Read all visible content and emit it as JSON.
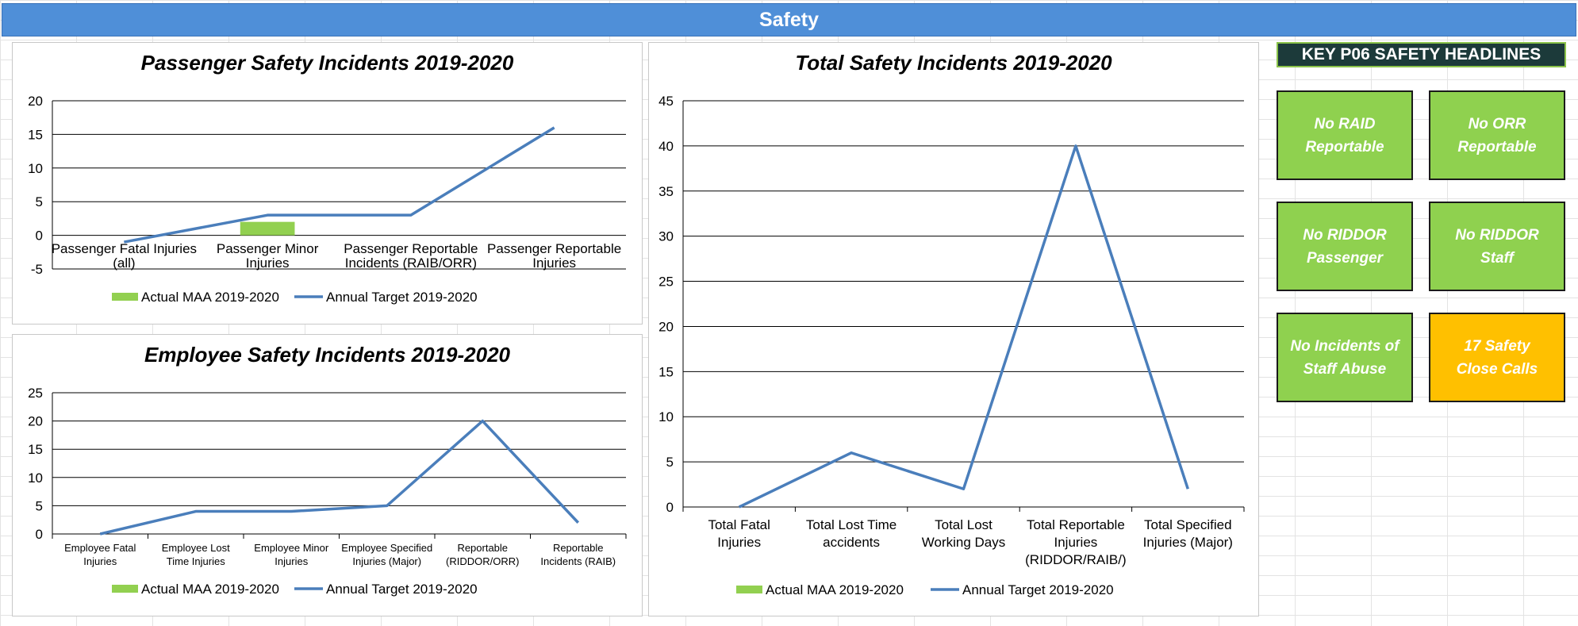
{
  "page_title": "Safety",
  "colors": {
    "title_bar": "#4f8fd8",
    "line": "#4a7ebb",
    "bar": "#92d050",
    "tile_green": "#8fd14f",
    "tile_amber": "#ffc000",
    "headline_bg": "#1c3a3a"
  },
  "chart_data": [
    {
      "type": "bar",
      "title": "Passenger Safety Incidents 2019-2020",
      "categories": [
        [
          "Passenger Fatal Injuries",
          "(all)"
        ],
        [
          "Passenger Minor",
          "Injuries"
        ],
        [
          "Passenger Reportable",
          "Incidents (RAIB/ORR)"
        ],
        [
          "Passenger Reportable",
          "Injuries"
        ]
      ],
      "series": [
        {
          "name": "Actual MAA 2019-2020",
          "type": "bar",
          "values": [
            0,
            2,
            0,
            0
          ]
        },
        {
          "name": "Annual Target 2019-2020",
          "type": "line",
          "values": [
            -1,
            3,
            3,
            16
          ]
        }
      ],
      "ylim": [
        -5,
        20
      ],
      "yticks": [
        -5,
        0,
        5,
        10,
        15,
        20
      ],
      "grid": true,
      "legend": "bottom"
    },
    {
      "type": "bar",
      "title": "Employee Safety Incidents 2019-2020",
      "categories": [
        [
          "Employee Fatal",
          "Injuries"
        ],
        [
          "Employee Lost",
          "Time Injuries"
        ],
        [
          "Employee Minor",
          "Injuries"
        ],
        [
          "Employee Specified",
          "Injuries (Major)"
        ],
        [
          "Reportable",
          "(RIDDOR/ORR)"
        ],
        [
          "Reportable",
          "Incidents (RAIB)"
        ]
      ],
      "series": [
        {
          "name": "Actual MAA 2019-2020",
          "type": "bar",
          "values": [
            0,
            0,
            0,
            0,
            0,
            0
          ]
        },
        {
          "name": "Annual Target 2019-2020",
          "type": "line",
          "values": [
            0,
            4,
            4,
            5,
            20,
            2
          ]
        }
      ],
      "ylim": [
        0,
        25
      ],
      "yticks": [
        0,
        5,
        10,
        15,
        20,
        25
      ],
      "grid": true,
      "legend": "bottom"
    },
    {
      "type": "bar",
      "title": "Total Safety Incidents 2019-2020",
      "categories": [
        [
          "Total Fatal",
          "Injuries"
        ],
        [
          "Total Lost Time",
          "accidents"
        ],
        [
          "Total Lost",
          "Working Days"
        ],
        [
          "Total Reportable",
          "Injuries",
          "(RIDDOR/RAIB/)"
        ],
        [
          "Total Specified",
          "Injuries (Major)"
        ]
      ],
      "series": [
        {
          "name": "Actual MAA 2019-2020",
          "type": "bar",
          "values": [
            0,
            0,
            0,
            0,
            0
          ]
        },
        {
          "name": "Annual Target 2019-2020",
          "type": "line",
          "values": [
            0,
            6,
            2,
            40,
            2
          ]
        }
      ],
      "ylim": [
        0,
        45
      ],
      "yticks": [
        0,
        5,
        10,
        15,
        20,
        25,
        30,
        35,
        40,
        45
      ],
      "grid": true,
      "legend": "bottom"
    }
  ],
  "headlines": {
    "title": "KEY P06 SAFETY HEADLINES",
    "tiles": [
      {
        "text": "No RAID Reportable",
        "status": "green"
      },
      {
        "text": "No ORR Reportable",
        "status": "green"
      },
      {
        "text": "No RIDDOR Passenger",
        "status": "green"
      },
      {
        "text": "No RIDDOR Staff",
        "status": "green"
      },
      {
        "text": "No Incidents of Staff Abuse",
        "status": "green"
      },
      {
        "text": "17 Safety Close Calls",
        "status": "amber"
      }
    ]
  }
}
